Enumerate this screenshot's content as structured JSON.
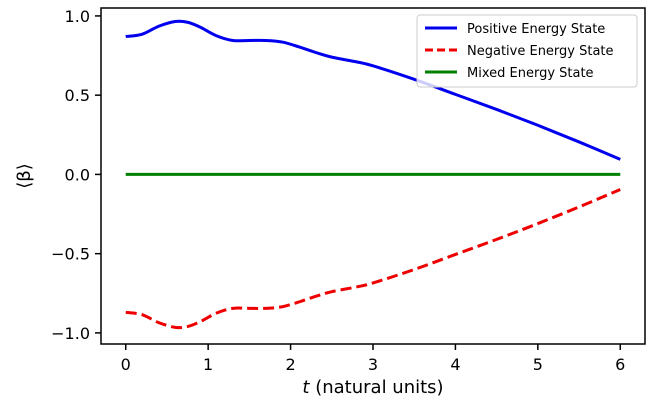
{
  "chart_data": {
    "type": "line",
    "title": "",
    "xlabel_italic": "t",
    "xlabel_rest": " (natural units)",
    "ylabel": "⟨β⟩",
    "xlim": [
      -0.3,
      6.3
    ],
    "ylim": [
      -1.07,
      1.05
    ],
    "xticks": [
      0,
      1,
      2,
      3,
      4,
      5,
      6
    ],
    "xtick_labels": [
      "0",
      "1",
      "2",
      "3",
      "4",
      "5",
      "6"
    ],
    "yticks": [
      -1.0,
      -0.5,
      0.0,
      0.5,
      1.0
    ],
    "ytick_labels": [
      "−1.0",
      "−0.5",
      "0.0",
      "0.5",
      "1.0"
    ],
    "grid": false,
    "legend_position": "top-right",
    "series": [
      {
        "name": "Positive Energy State",
        "color": "#0000ee",
        "style": "solid",
        "x": [
          0,
          0.2,
          0.4,
          0.6,
          0.75,
          0.9,
          1.1,
          1.3,
          1.5,
          1.7,
          1.9,
          2.1,
          2.3,
          2.5,
          2.8,
          3.0,
          3.5,
          4.0,
          4.5,
          5.0,
          5.5,
          6.0
        ],
        "y": [
          0.87,
          0.885,
          0.935,
          0.965,
          0.96,
          0.93,
          0.875,
          0.845,
          0.845,
          0.845,
          0.835,
          0.805,
          0.77,
          0.74,
          0.71,
          0.685,
          0.6,
          0.505,
          0.41,
          0.31,
          0.205,
          0.095
        ]
      },
      {
        "name": "Negative Energy State",
        "color": "#ee0000",
        "style": "dashed",
        "x": [
          0,
          0.2,
          0.4,
          0.6,
          0.75,
          0.9,
          1.1,
          1.3,
          1.5,
          1.7,
          1.9,
          2.1,
          2.3,
          2.5,
          2.8,
          3.0,
          3.5,
          4.0,
          4.5,
          5.0,
          5.5,
          6.0
        ],
        "y": [
          -0.87,
          -0.885,
          -0.935,
          -0.965,
          -0.96,
          -0.93,
          -0.875,
          -0.845,
          -0.845,
          -0.845,
          -0.835,
          -0.805,
          -0.77,
          -0.74,
          -0.71,
          -0.685,
          -0.6,
          -0.505,
          -0.41,
          -0.31,
          -0.205,
          -0.095
        ]
      },
      {
        "name": "Mixed Energy State",
        "color": "#008000",
        "style": "solid",
        "x": [
          0,
          6.0
        ],
        "y": [
          0.0,
          0.0
        ]
      }
    ]
  }
}
